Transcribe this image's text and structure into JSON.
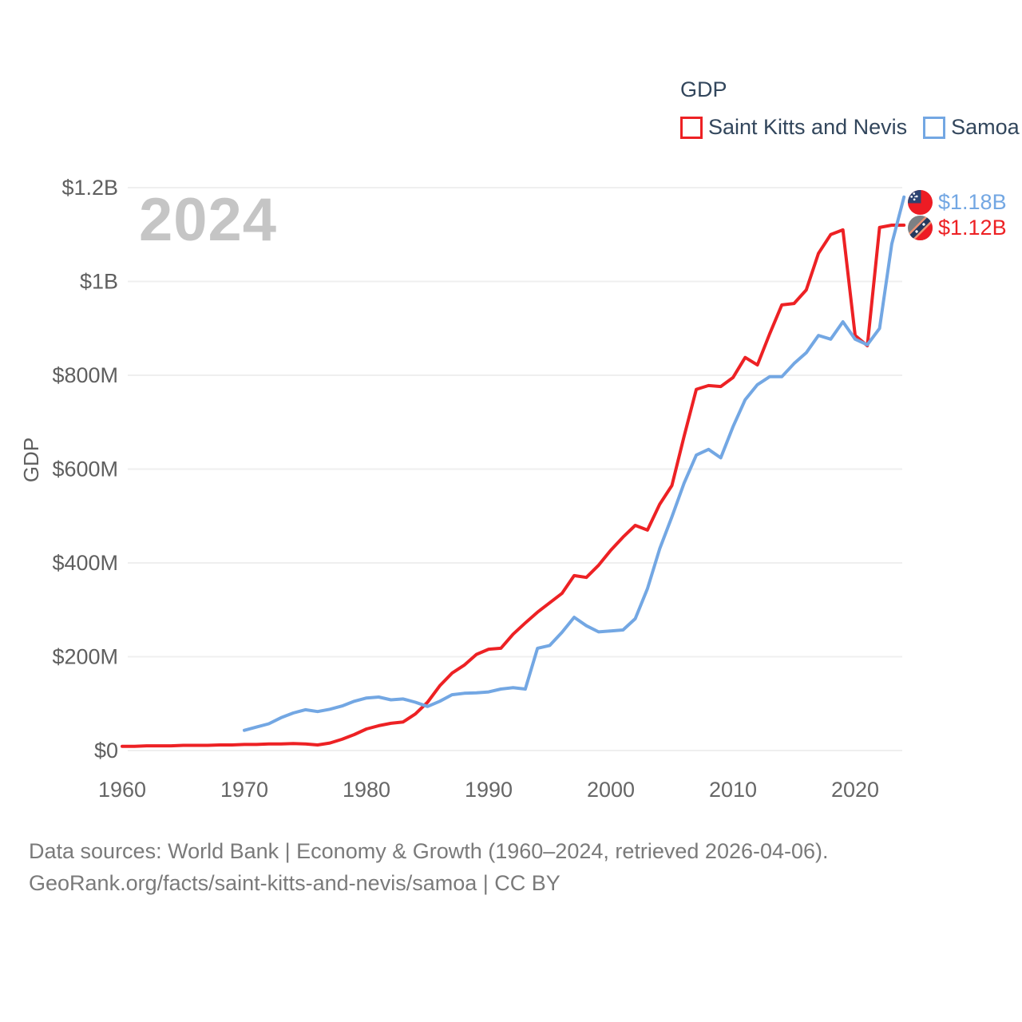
{
  "legend": {
    "title": "GDP"
  },
  "watermark": "2024",
  "axes": {
    "y_title": "GDP",
    "y_ticks": [
      {
        "value": 0,
        "label": "$0"
      },
      {
        "value": 200,
        "label": "$200M"
      },
      {
        "value": 400,
        "label": "$400M"
      },
      {
        "value": 600,
        "label": "$600M"
      },
      {
        "value": 800,
        "label": "$800M"
      },
      {
        "value": 1000,
        "label": "$1B"
      },
      {
        "value": 1200,
        "label": "$1.2B"
      }
    ],
    "x_ticks": [
      1960,
      1970,
      1980,
      1990,
      2000,
      2010,
      2020
    ]
  },
  "chart_data": {
    "type": "line",
    "title": "GDP",
    "unit": "USD, millions",
    "x_range": [
      1960,
      2024
    ],
    "ylim": [
      0,
      1200
    ],
    "grid": "horizontal",
    "legend_position": "top-right",
    "series": [
      {
        "name": "Saint Kitts and Nevis",
        "color": "#ed2124",
        "start_year": 1960,
        "end_year": 2024,
        "end_label": "$1.12B",
        "end_value_millions": 1120,
        "values": [
          9,
          9,
          10,
          10,
          10,
          11,
          11,
          11,
          12,
          12,
          13,
          13,
          14,
          14,
          15,
          14,
          12,
          16,
          24,
          34,
          46,
          53,
          58,
          61,
          78,
          103,
          138,
          165,
          182,
          205,
          216,
          218,
          248,
          272,
          295,
          315,
          335,
          373,
          369,
          395,
          427,
          455,
          480,
          470,
          525,
          565,
          670,
          770,
          778,
          776,
          795,
          838,
          822,
          888,
          950,
          953,
          982,
          1060,
          1100,
          1110,
          885,
          863,
          1115,
          1120,
          1120
        ]
      },
      {
        "name": "Samoa",
        "color": "#73a7e3",
        "start_year": 1970,
        "end_year": 2024,
        "end_label": "$1.18B",
        "end_value_millions": 1180,
        "values": [
          43,
          50,
          57,
          70,
          80,
          87,
          83,
          88,
          95,
          105,
          112,
          114,
          108,
          110,
          103,
          94,
          105,
          119,
          122,
          123,
          125,
          131,
          134,
          131,
          218,
          224,
          252,
          284,
          266,
          253,
          255,
          257,
          281,
          345,
          430,
          498,
          570,
          630,
          642,
          624,
          690,
          748,
          780,
          797,
          797,
          825,
          848,
          885,
          877,
          914,
          877,
          865,
          900,
          1080,
          1180
        ]
      }
    ]
  },
  "colors": {
    "text_dark": "#32465c",
    "axis_text": "#666666",
    "gridline": "#efefef",
    "watermark": "#c5c5c5",
    "footer_text": "#7a7a7a"
  },
  "footer": {
    "line1": "Data sources: World Bank | Economy & Growth (1960–2024, retrieved 2026-04-06).",
    "line2": "GeoRank.org/facts/saint-kitts-and-nevis/samoa | CC BY"
  }
}
